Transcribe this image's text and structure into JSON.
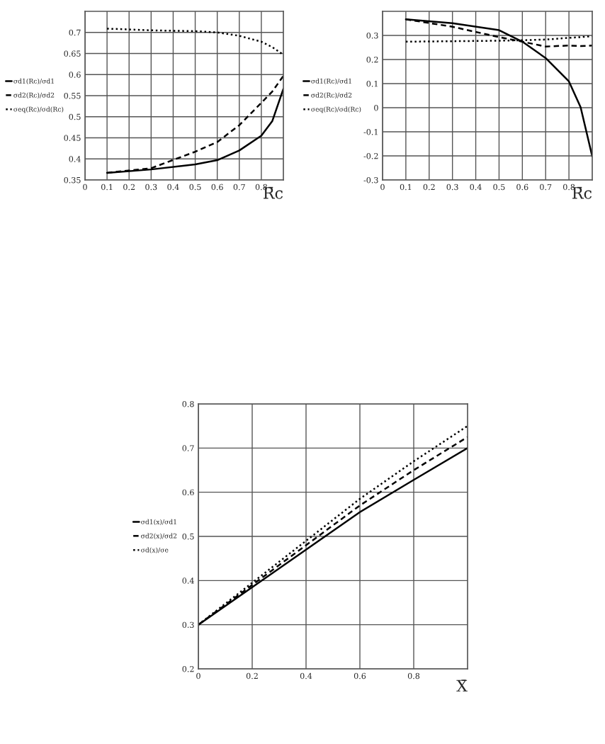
{
  "chart_data": [
    {
      "type": "line",
      "xlabel": "R̄c",
      "x": [
        0.1,
        0.3,
        0.5,
        0.6,
        0.7,
        0.8,
        0.85,
        0.9
      ],
      "xlim": [
        0,
        0.9
      ],
      "xticks": [
        0,
        0.1,
        0.2,
        0.3,
        0.4,
        0.5,
        0.6,
        0.7,
        0.8
      ],
      "ylim": [
        0.35,
        0.75
      ],
      "yticks": [
        0.35,
        0.4,
        0.45,
        0.5,
        0.55,
        0.6,
        0.65,
        0.7
      ],
      "grid": true,
      "legend": "left",
      "series": [
        {
          "name": "σd1(Rc)/σd1",
          "color": "#000000",
          "line_style": "solid",
          "values": [
            0.367,
            0.375,
            0.387,
            0.397,
            0.42,
            0.455,
            0.49,
            0.566
          ]
        },
        {
          "name": "σd2(Rc)/σd2",
          "color": "#000000",
          "line_style": "dashed",
          "values": [
            0.367,
            0.378,
            0.417,
            0.44,
            0.48,
            0.533,
            0.56,
            0.597
          ]
        },
        {
          "name": "σeq(Rc)/σd(Rc)",
          "color": "#000000",
          "line_style": "dotted",
          "values": [
            0.709,
            0.705,
            0.703,
            0.7,
            0.692,
            0.678,
            0.665,
            0.647
          ]
        }
      ]
    },
    {
      "type": "line",
      "xlabel": "R̄c",
      "x": [
        0.1,
        0.3,
        0.5,
        0.6,
        0.7,
        0.8,
        0.85,
        0.9
      ],
      "xlim": [
        0,
        0.9
      ],
      "xticks": [
        0,
        0.1,
        0.2,
        0.3,
        0.4,
        0.5,
        0.6,
        0.7,
        0.8
      ],
      "ylim": [
        -0.3,
        0.4
      ],
      "yticks": [
        -0.3,
        -0.2,
        -0.1,
        0,
        0.1,
        0.2,
        0.3
      ],
      "grid": true,
      "legend": "left",
      "series": [
        {
          "name": "σd1(Rc)/σd1",
          "color": "#000000",
          "line_style": "solid",
          "values": [
            0.367,
            0.351,
            0.322,
            0.274,
            0.206,
            0.109,
            0.002,
            -0.202
          ]
        },
        {
          "name": "σd2(Rc)/σd2",
          "color": "#000000",
          "line_style": "dashed",
          "values": [
            0.367,
            0.336,
            0.293,
            0.274,
            0.254,
            0.258,
            0.256,
            0.258
          ]
        },
        {
          "name": "σeq(Rc)/σd(Rc)",
          "color": "#000000",
          "line_style": "dotted",
          "values": [
            0.274,
            0.276,
            0.278,
            0.28,
            0.283,
            0.29,
            0.293,
            0.297
          ]
        }
      ]
    },
    {
      "type": "line",
      "xlabel": "X̄",
      "x": [
        0,
        0.2,
        0.4,
        0.6,
        0.8,
        1.0
      ],
      "xlim": [
        0,
        1.0
      ],
      "xticks": [
        0,
        0.2,
        0.4,
        0.6,
        0.8
      ],
      "ylim": [
        0.2,
        0.8
      ],
      "yticks": [
        0.2,
        0.3,
        0.4,
        0.5,
        0.6,
        0.7,
        0.8
      ],
      "grid": true,
      "legend": "left",
      "series": [
        {
          "name": "σd1(x)/σd1",
          "color": "#000000",
          "line_style": "solid",
          "values": [
            0.3,
            0.385,
            0.47,
            0.555,
            0.628,
            0.7
          ]
        },
        {
          "name": "σd2(x)/σd2",
          "color": "#000000",
          "line_style": "dashed",
          "values": [
            0.3,
            0.39,
            0.48,
            0.57,
            0.65,
            0.725
          ]
        },
        {
          "name": "σd(x)/σe",
          "color": "#000000",
          "line_style": "dotted",
          "values": [
            0.3,
            0.395,
            0.49,
            0.585,
            0.67,
            0.75
          ]
        }
      ]
    }
  ]
}
